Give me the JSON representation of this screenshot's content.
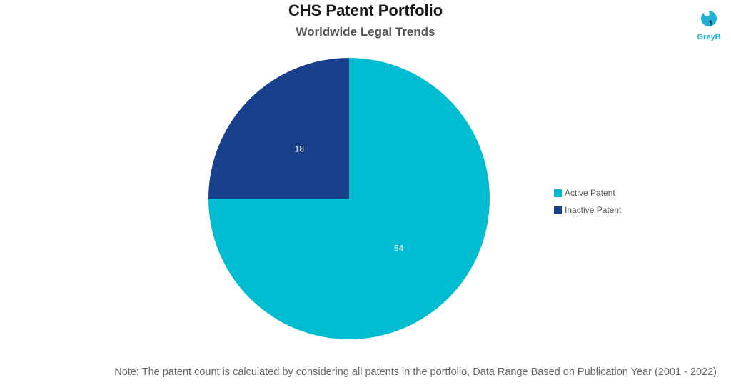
{
  "chart_data": {
    "type": "pie",
    "title": "CHS Patent Portfolio",
    "subtitle": "Worldwide Legal Trends",
    "slices": [
      {
        "label": "Active Patent",
        "value": 54,
        "color": "#00bcd0"
      },
      {
        "label": "Inactive Patent",
        "value": 18,
        "color": "#183f8c"
      }
    ],
    "start_angle_deg": 0,
    "direction": "clockwise",
    "legend_placement": "right"
  },
  "logo": {
    "text": "GreyB",
    "color": "#1fb3d1"
  },
  "note": "Note: The patent count is calculated by considering all patents in the portfolio, Data Range Based on Publication Year (2001 - 2022)"
}
